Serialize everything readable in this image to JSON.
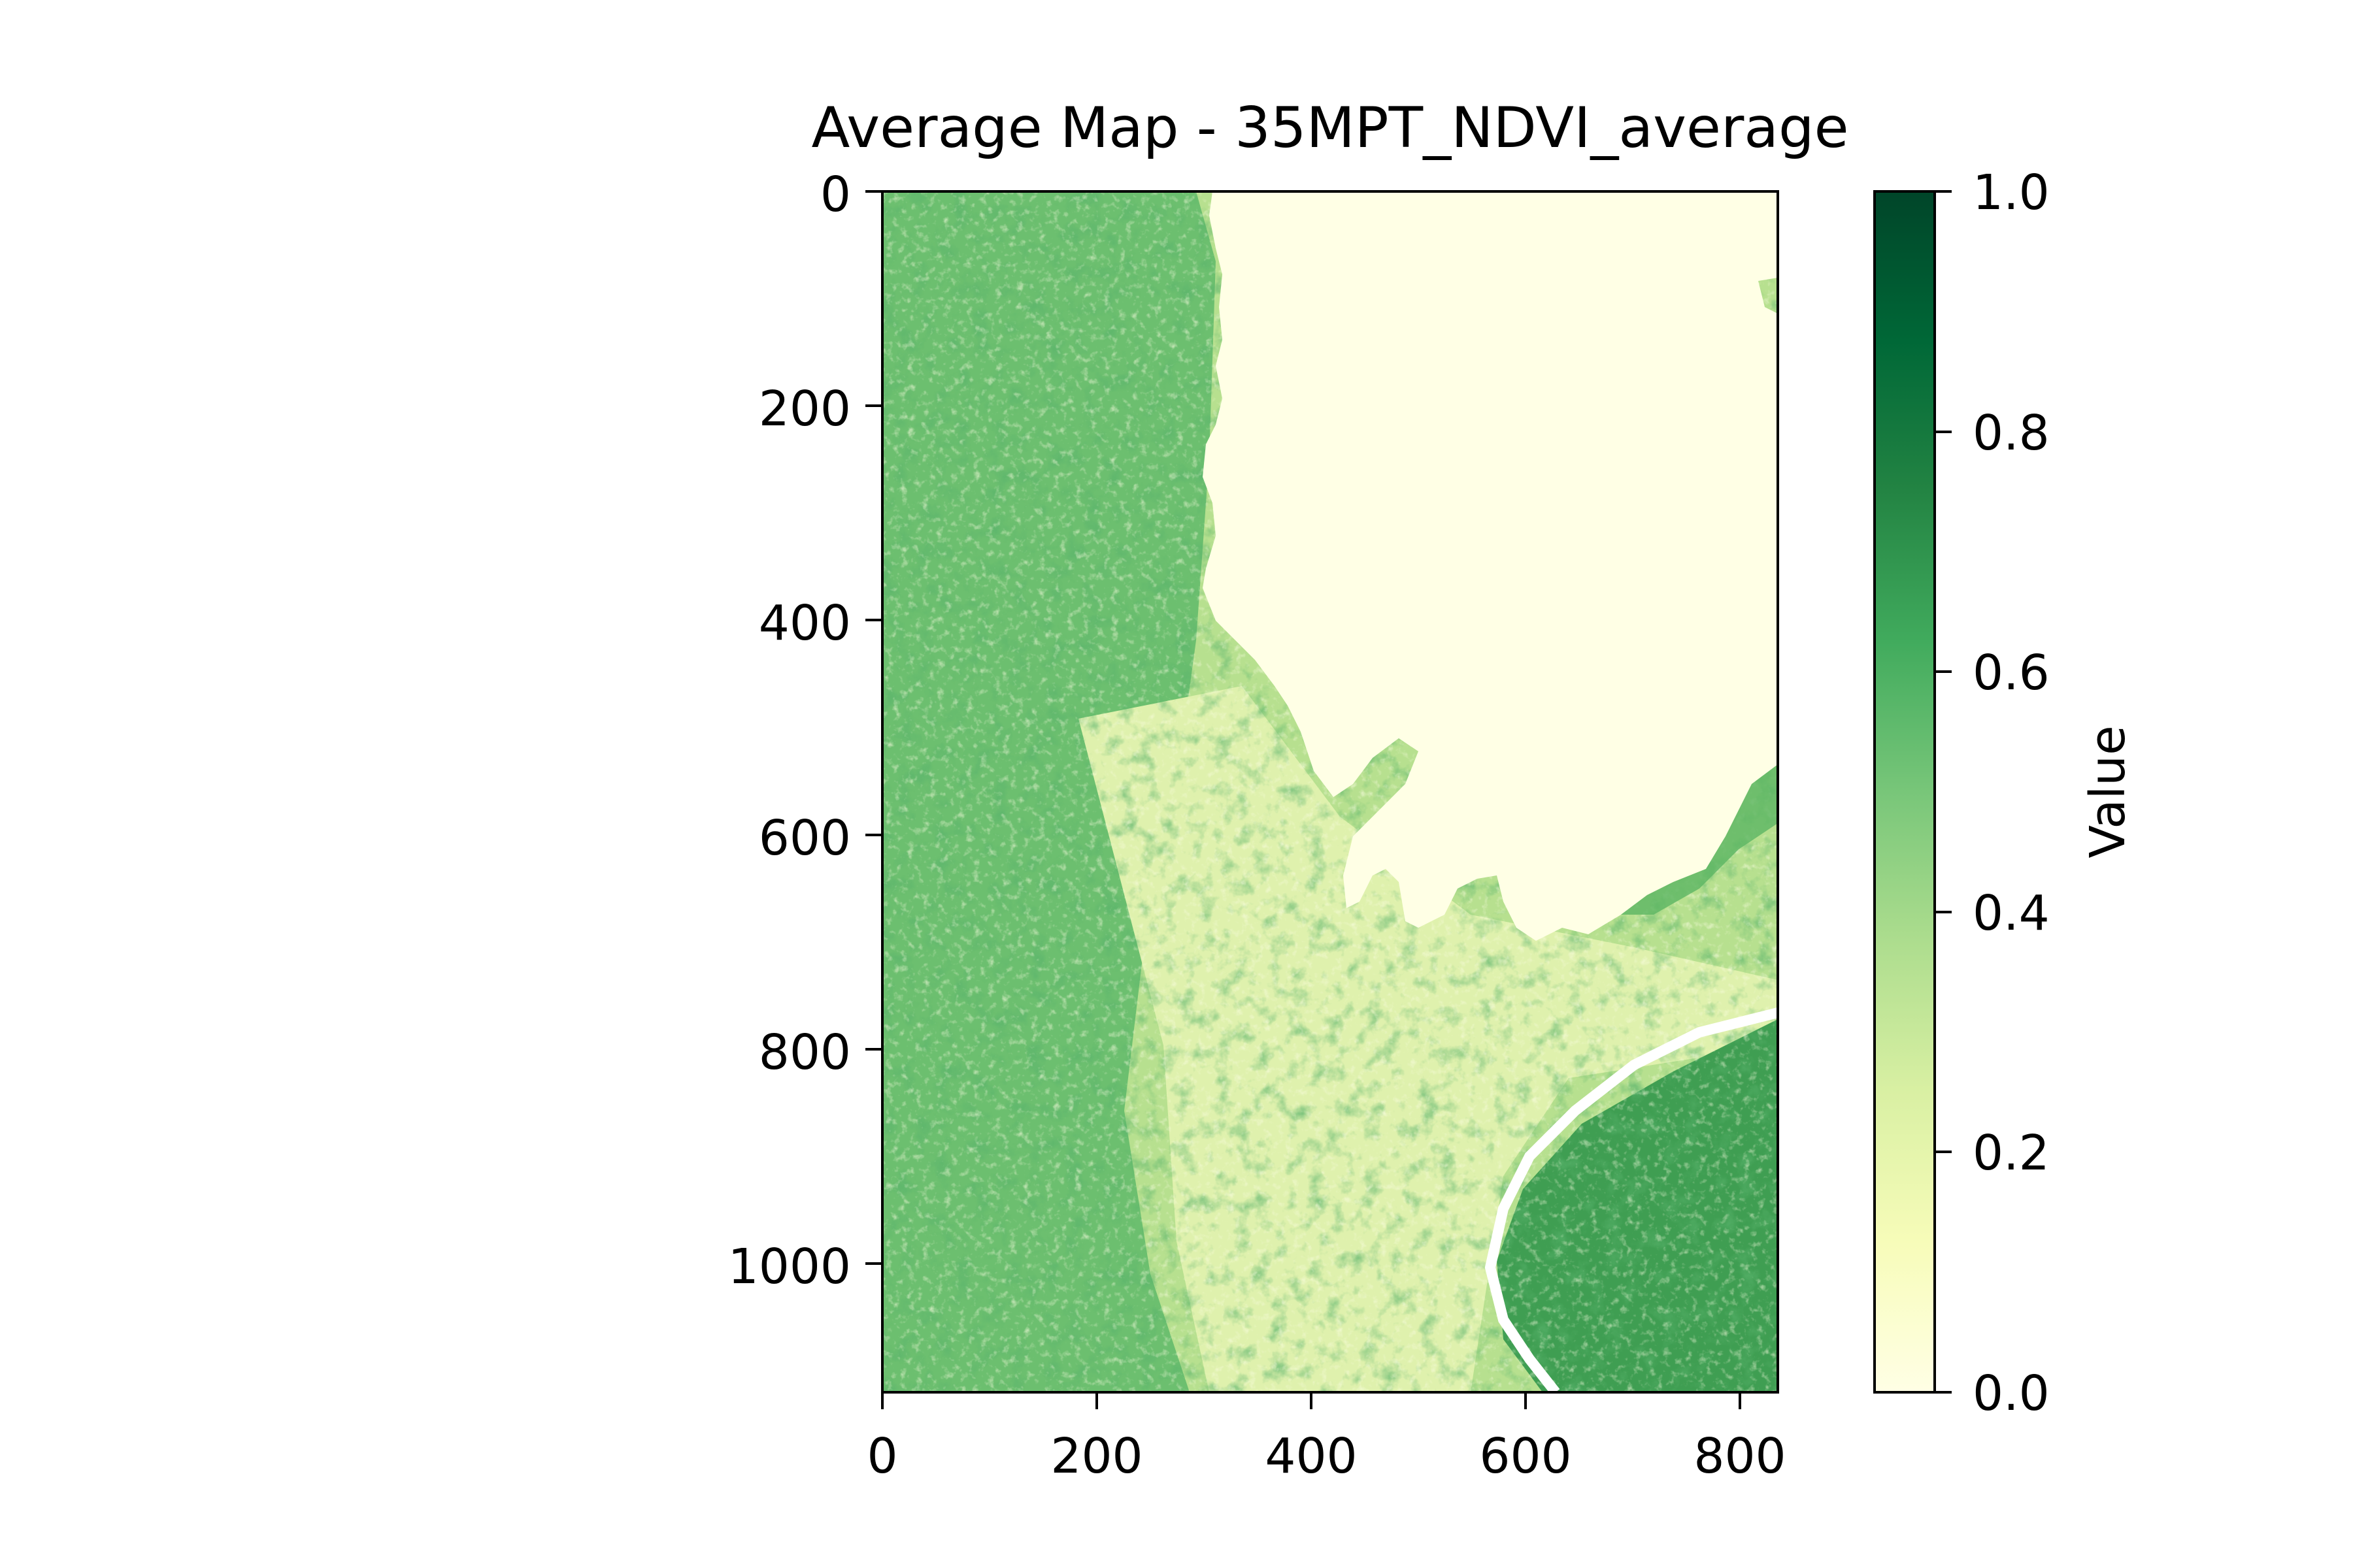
{
  "chart_data": {
    "type": "heatmap",
    "title": "Average Map - 35MPT_NDVI_average",
    "xlabel": "",
    "ylabel": "",
    "x_range": [
      0,
      835
    ],
    "y_range": [
      0,
      1120
    ],
    "y_inverted": true,
    "x_ticks": [
      "0",
      "200",
      "400",
      "600",
      "800"
    ],
    "x_tick_values": [
      0,
      200,
      400,
      600,
      800
    ],
    "y_ticks": [
      "0",
      "200",
      "400",
      "600",
      "800",
      "1000"
    ],
    "y_tick_values": [
      0,
      200,
      400,
      600,
      800,
      1000
    ],
    "grid": false,
    "colormap": "YlGn",
    "colormap_stops": [
      "#ffffe5",
      "#f7fcb9",
      "#d9f0a3",
      "#addd8e",
      "#78c679",
      "#41ab5d",
      "#238443",
      "#006837",
      "#004529"
    ],
    "colorbar": {
      "label": "Value",
      "range": [
        0.0,
        1.0
      ],
      "ticks": [
        "0.0",
        "0.2",
        "0.4",
        "0.6",
        "0.8",
        "1.0"
      ],
      "tick_values": [
        0.0,
        0.2,
        0.4,
        0.6,
        0.8,
        1.0
      ]
    },
    "regions": [
      {
        "name": "lake (upper right)",
        "value": 0.0
      },
      {
        "name": "left vegetated strip",
        "value": 0.55
      },
      {
        "name": "central valley",
        "value": 0.25
      },
      {
        "name": "lower right hills",
        "value": 0.7
      },
      {
        "name": "river channel",
        "value": 0.0
      }
    ]
  }
}
